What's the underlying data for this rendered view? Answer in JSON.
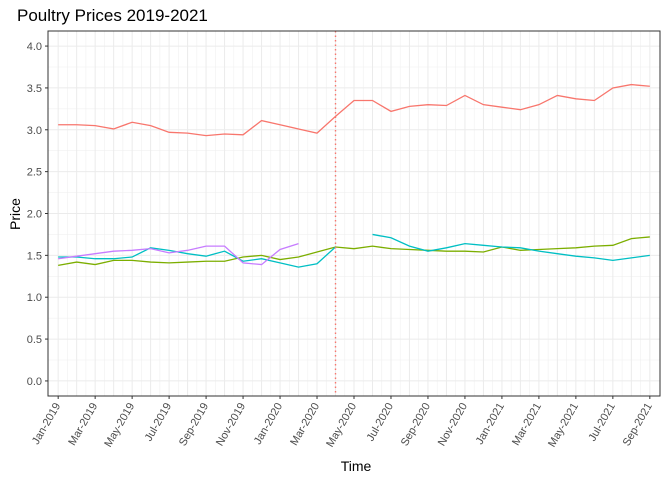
{
  "chart_data": {
    "type": "line",
    "title": "Poultry Prices 2019-2021",
    "xlabel": "Time",
    "ylabel": "Price",
    "ylim": [
      -0.18,
      4.18
    ],
    "yticks": [
      "0.0",
      "0.5",
      "1.0",
      "1.5",
      "2.0",
      "2.5",
      "3.0",
      "3.5",
      "4.0"
    ],
    "x_months": [
      "2019-01",
      "2019-02",
      "2019-03",
      "2019-04",
      "2019-05",
      "2019-06",
      "2019-07",
      "2019-08",
      "2019-09",
      "2019-10",
      "2019-11",
      "2019-12",
      "2020-01",
      "2020-02",
      "2020-03",
      "2020-04",
      "2020-05",
      "2020-06",
      "2020-07",
      "2020-08",
      "2020-09",
      "2020-10",
      "2020-11",
      "2020-12",
      "2021-01",
      "2021-02",
      "2021-03",
      "2021-04",
      "2021-05",
      "2021-06",
      "2021-07",
      "2021-08",
      "2021-09"
    ],
    "xtick_labels": [
      "Jan-2019",
      "Mar-2019",
      "May-2019",
      "Jul-2019",
      "Sep-2019",
      "Nov-2019",
      "Jan-2020",
      "Mar-2020",
      "May-2020",
      "Jul-2020",
      "Sep-2020",
      "Nov-2020",
      "Jan-2021",
      "Mar-2021",
      "May-2021",
      "Jul-2021",
      "Sep-2021"
    ],
    "vline": {
      "x": "2020-04",
      "color": "#F8766D",
      "style": "dotted"
    },
    "grid": true,
    "legend": "none",
    "series": [
      {
        "color": "#F8766D",
        "values": [
          3.06,
          3.06,
          3.05,
          3.01,
          3.09,
          3.05,
          2.97,
          2.96,
          2.93,
          2.95,
          2.94,
          3.11,
          3.06,
          3.01,
          2.96,
          3.16,
          3.35,
          3.35,
          3.22,
          3.28,
          3.3,
          3.29,
          3.41,
          3.3,
          3.27,
          3.24,
          3.3,
          3.41,
          3.37,
          3.35,
          3.5,
          3.54,
          3.52
        ]
      },
      {
        "color": "#7CAE00",
        "values": [
          1.38,
          1.42,
          1.39,
          1.44,
          1.44,
          1.42,
          1.41,
          1.42,
          1.43,
          1.43,
          1.48,
          1.5,
          1.45,
          1.48,
          1.54,
          1.6,
          1.58,
          1.61,
          1.58,
          1.57,
          1.56,
          1.55,
          1.55,
          1.54,
          1.6,
          1.56,
          1.57,
          1.58,
          1.59,
          1.61,
          1.62,
          1.7,
          1.72
        ]
      },
      {
        "color": "#00BFC4",
        "values": [
          1.48,
          1.48,
          1.46,
          1.46,
          1.48,
          1.59,
          1.56,
          1.52,
          1.49,
          1.55,
          1.43,
          1.46,
          1.41,
          1.36,
          1.4,
          1.6,
          null,
          1.75,
          1.71,
          1.61,
          1.55,
          1.59,
          1.64,
          1.62,
          1.6,
          1.59,
          1.55,
          1.52,
          1.49,
          1.47,
          1.44,
          1.47,
          1.5
        ]
      },
      {
        "color": "#C77CFF",
        "values": [
          1.46,
          1.49,
          1.52,
          1.55,
          1.56,
          1.58,
          1.53,
          1.56,
          1.61,
          1.61,
          1.41,
          1.39,
          1.57,
          1.64,
          null,
          null,
          null,
          null,
          null,
          null,
          null,
          null,
          null,
          null,
          null,
          null,
          null,
          null,
          null,
          null,
          null,
          null,
          null
        ]
      }
    ]
  }
}
